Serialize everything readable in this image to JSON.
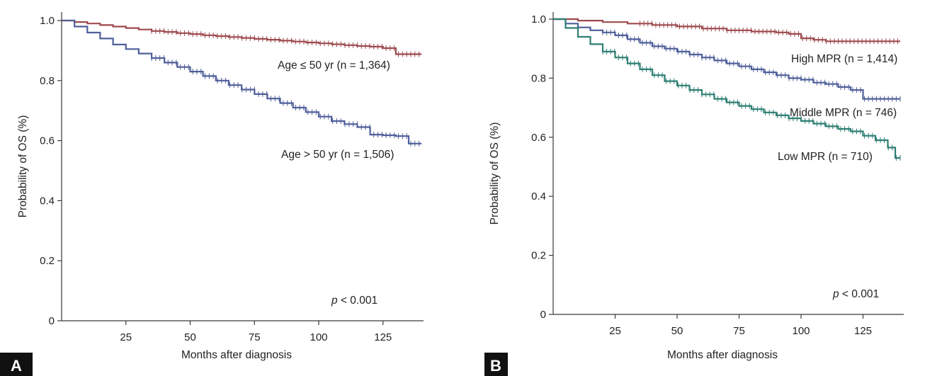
{
  "chart_data": [
    {
      "type": "line",
      "panel_label": "A",
      "xlabel": "Months after diagnosis",
      "ylabel": "Probability of OS (%)",
      "xlim": [
        0,
        140
      ],
      "ylim": [
        0,
        1.0
      ],
      "xticks": [
        25,
        50,
        75,
        100,
        125
      ],
      "xtick_labels": [
        "25",
        "50",
        "75",
        "100",
        "125"
      ],
      "yticks": [
        0,
        0.2,
        0.4,
        0.6,
        0.8,
        1.0
      ],
      "ytick_labels": [
        "0",
        "0.2",
        "0.4",
        "0.6",
        "0.8",
        "1.0"
      ],
      "grid": false,
      "annotation": "p < 0.001",
      "series": [
        {
          "name": "Age ≤ 50 yr (n = 1,364)",
          "color": "#9e4a4e",
          "x": [
            0,
            5,
            10,
            15,
            20,
            25,
            30,
            35,
            40,
            45,
            50,
            55,
            60,
            65,
            70,
            75,
            80,
            85,
            90,
            95,
            100,
            105,
            110,
            115,
            120,
            125,
            130,
            135,
            140
          ],
          "y": [
            1.0,
            0.995,
            0.99,
            0.985,
            0.98,
            0.975,
            0.97,
            0.965,
            0.962,
            0.958,
            0.955,
            0.951,
            0.948,
            0.945,
            0.942,
            0.939,
            0.936,
            0.933,
            0.93,
            0.927,
            0.924,
            0.921,
            0.918,
            0.915,
            0.913,
            0.908,
            0.888,
            0.888,
            0.888
          ]
        },
        {
          "name": "Age > 50 yr (n = 1,506)",
          "color": "#4f5f9a",
          "x": [
            0,
            5,
            10,
            15,
            20,
            25,
            30,
            35,
            40,
            45,
            50,
            55,
            60,
            65,
            70,
            75,
            80,
            85,
            90,
            95,
            100,
            105,
            110,
            115,
            120,
            125,
            130,
            135,
            140
          ],
          "y": [
            1.0,
            0.98,
            0.96,
            0.94,
            0.92,
            0.905,
            0.89,
            0.875,
            0.86,
            0.845,
            0.83,
            0.815,
            0.8,
            0.785,
            0.77,
            0.755,
            0.74,
            0.725,
            0.71,
            0.695,
            0.68,
            0.665,
            0.655,
            0.645,
            0.62,
            0.618,
            0.615,
            0.59,
            0.59
          ]
        }
      ]
    },
    {
      "type": "line",
      "panel_label": "B",
      "xlabel": "Months after diagnosis",
      "ylabel": "Probability of OS (%)",
      "xlim": [
        0,
        140
      ],
      "ylim": [
        0,
        1.0
      ],
      "xticks": [
        25,
        50,
        75,
        100,
        125
      ],
      "xtick_labels": [
        "25",
        "50",
        "75",
        "100",
        "125"
      ],
      "yticks": [
        0,
        0.2,
        0.4,
        0.6,
        0.8,
        1.0
      ],
      "ytick_labels": [
        "0",
        "0.2",
        "0.4",
        "0.6",
        "0.8",
        "1.0"
      ],
      "grid": false,
      "annotation": "p < 0.001",
      "series": [
        {
          "name": "High MPR (n = 1,414)",
          "color": "#9e4a4e",
          "x": [
            0,
            10,
            20,
            30,
            40,
            50,
            60,
            70,
            80,
            90,
            95,
            100,
            105,
            110,
            120,
            130,
            140
          ],
          "y": [
            1.0,
            0.995,
            0.99,
            0.985,
            0.98,
            0.975,
            0.968,
            0.962,
            0.958,
            0.955,
            0.95,
            0.935,
            0.93,
            0.925,
            0.925,
            0.925,
            0.925
          ]
        },
        {
          "name": "Middle MPR  (n = 746)",
          "color": "#4f5f9a",
          "x": [
            0,
            5,
            10,
            15,
            20,
            25,
            30,
            35,
            40,
            45,
            50,
            55,
            60,
            65,
            70,
            75,
            80,
            85,
            90,
            95,
            100,
            105,
            110,
            115,
            120,
            125,
            130,
            135,
            140
          ],
          "y": [
            1.0,
            0.985,
            0.972,
            0.962,
            0.955,
            0.945,
            0.932,
            0.92,
            0.908,
            0.9,
            0.89,
            0.88,
            0.87,
            0.86,
            0.85,
            0.84,
            0.83,
            0.82,
            0.81,
            0.8,
            0.795,
            0.785,
            0.78,
            0.77,
            0.76,
            0.73,
            0.73,
            0.73,
            0.73
          ]
        },
        {
          "name": "Low MPR (n = 710)",
          "color": "#2e7f73",
          "x": [
            0,
            5,
            10,
            15,
            20,
            25,
            30,
            35,
            40,
            45,
            50,
            55,
            60,
            65,
            70,
            75,
            80,
            85,
            90,
            95,
            100,
            105,
            110,
            115,
            120,
            125,
            130,
            135,
            138,
            140
          ],
          "y": [
            1.0,
            0.97,
            0.94,
            0.915,
            0.89,
            0.87,
            0.85,
            0.83,
            0.81,
            0.79,
            0.775,
            0.76,
            0.745,
            0.73,
            0.718,
            0.706,
            0.695,
            0.684,
            0.674,
            0.664,
            0.655,
            0.646,
            0.637,
            0.628,
            0.62,
            0.605,
            0.59,
            0.565,
            0.53,
            0.53
          ]
        }
      ]
    }
  ]
}
